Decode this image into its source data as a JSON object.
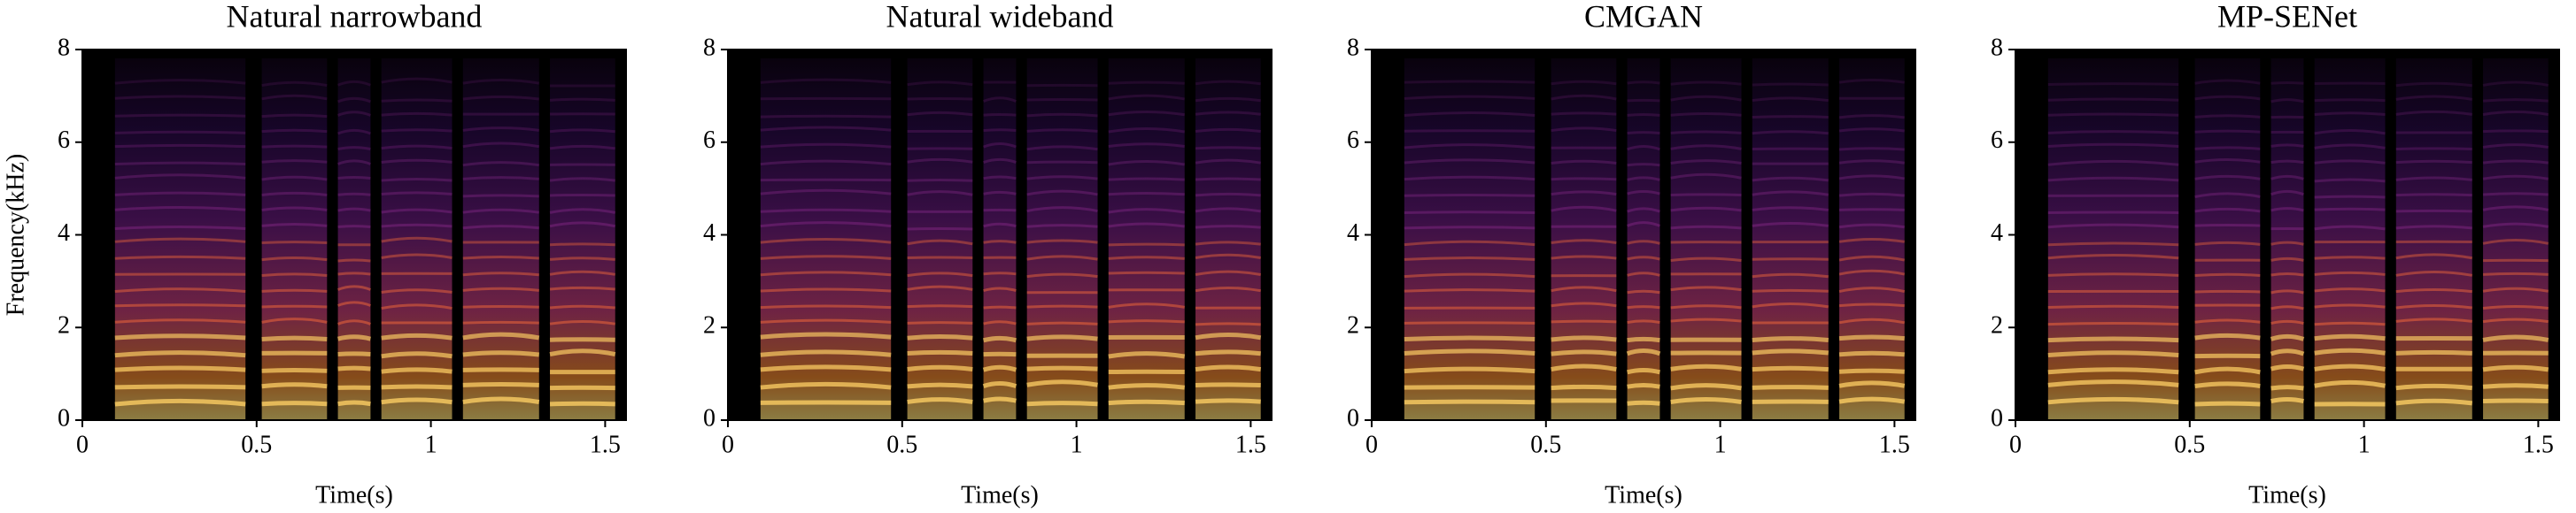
{
  "chart_data": [
    {
      "type": "spectrogram",
      "title": "Natural narrowband",
      "xlabel": "Time(s)",
      "ylabel": "Frequency(kHz)",
      "xlim": [
        0,
        1.56
      ],
      "xticks": [
        0,
        0.5,
        1,
        1.5
      ],
      "ylim": [
        0,
        8
      ],
      "yticks": [
        0,
        2,
        4,
        6,
        8
      ]
    },
    {
      "type": "spectrogram",
      "title": "Natural wideband",
      "xlabel": "Time(s)",
      "xlim": [
        0,
        1.56
      ],
      "xticks": [
        0,
        0.5,
        1,
        1.5
      ],
      "ylim": [
        0,
        8
      ],
      "yticks": [
        0,
        2,
        4,
        6,
        8
      ]
    },
    {
      "type": "spectrogram",
      "title": "CMGAN",
      "xlabel": "Time(s)",
      "xlim": [
        0,
        1.56
      ],
      "xticks": [
        0,
        0.5,
        1,
        1.5
      ],
      "ylim": [
        0,
        8
      ],
      "yticks": [
        0,
        2,
        4,
        6,
        8
      ]
    },
    {
      "type": "spectrogram",
      "title": "MP-SENet",
      "xlabel": "Time(s)",
      "xlim": [
        0,
        1.56
      ],
      "xticks": [
        0,
        0.5,
        1,
        1.5
      ],
      "ylim": [
        0,
        8
      ],
      "yticks": [
        0,
        2,
        4,
        6,
        8
      ]
    }
  ]
}
